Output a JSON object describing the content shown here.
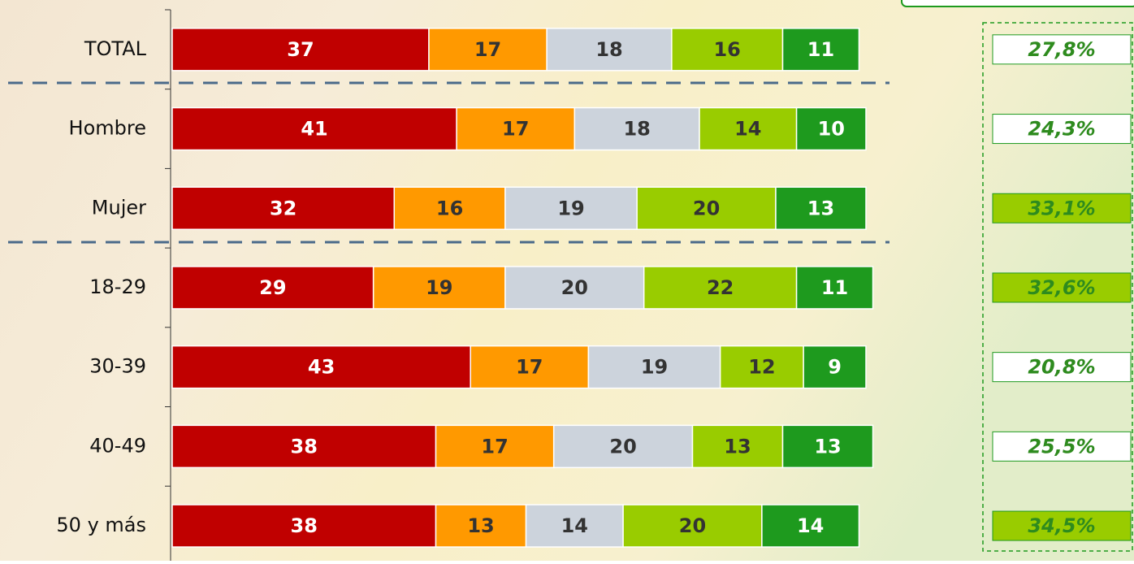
{
  "chart_data": {
    "type": "stacked-bar-horizontal",
    "categories": [
      "TOTAL",
      "Hombre",
      "Mujer",
      "18-29",
      "30-39",
      "40-49",
      "50 y más"
    ],
    "series": [
      {
        "color": "#c00000",
        "label_color": "#ffffff",
        "values": [
          37,
          41,
          32,
          29,
          43,
          38,
          38
        ]
      },
      {
        "color": "#ff9900",
        "label_color": "#333333",
        "values": [
          17,
          17,
          16,
          19,
          17,
          17,
          13
        ]
      },
      {
        "color": "#ccd3dc",
        "label_color": "#333333",
        "values": [
          18,
          18,
          19,
          20,
          19,
          20,
          14
        ]
      },
      {
        "color": "#99cc00",
        "label_color": "#333333",
        "values": [
          16,
          14,
          20,
          22,
          12,
          13,
          20
        ]
      },
      {
        "color": "#1e9a1e",
        "label_color": "#ffffff",
        "values": [
          11,
          10,
          13,
          11,
          9,
          13,
          14
        ]
      }
    ],
    "xlim": [
      0,
      100
    ],
    "totals": {
      "values": [
        27.8,
        24.3,
        33.1,
        32.6,
        20.8,
        25.5,
        34.5
      ],
      "value_labels": [
        "27,8%",
        "24,3%",
        "33,1%",
        "32,6%",
        "20,8%",
        "25,5%",
        "34,5%"
      ],
      "box_colors": [
        "#ffffff",
        "#ffffff",
        "#99cc00",
        "#99cc00",
        "#ffffff",
        "#ffffff",
        "#99cc00"
      ]
    }
  }
}
